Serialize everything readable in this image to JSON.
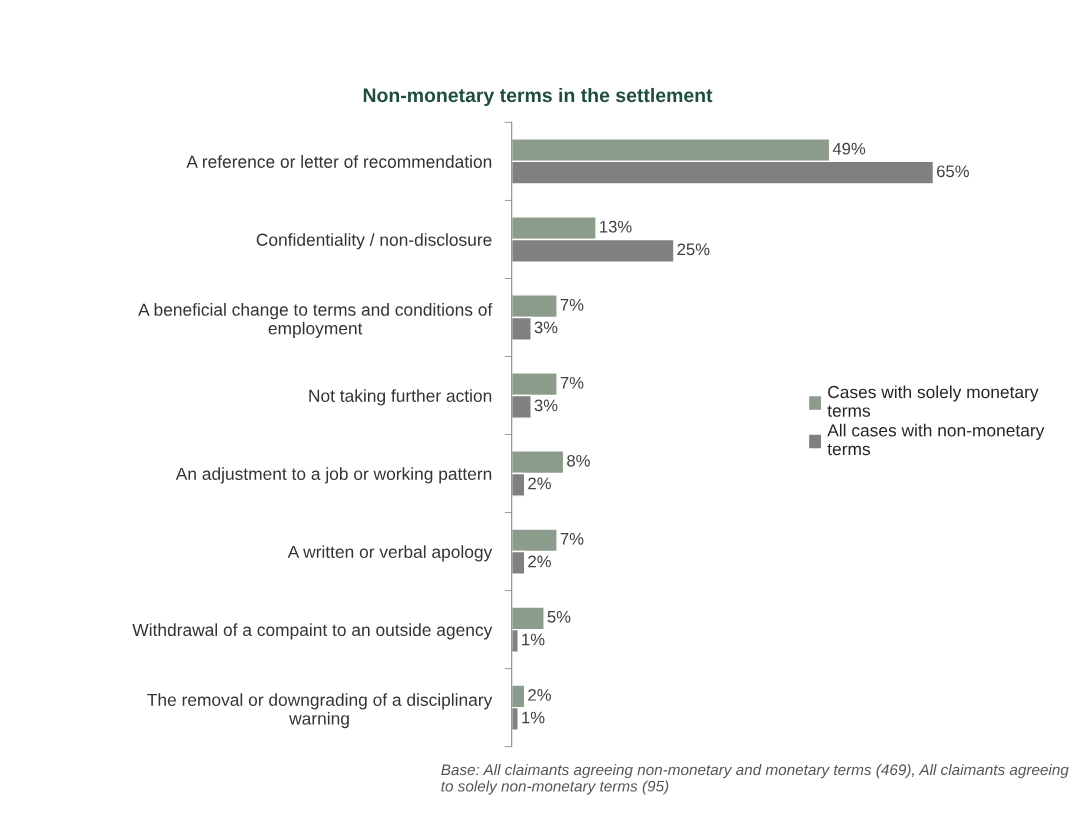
{
  "chart_data": {
    "type": "bar",
    "orientation": "horizontal",
    "title": "Non-monetary terms in the settlement",
    "categories": [
      "A reference or letter of recommendation",
      "Confidentiality / non-disclosure",
      "A beneficial change to terms and conditions of\nemployment",
      "Not taking further action",
      "An adjustment to a job or working pattern",
      "A written or verbal apology",
      "Withdrawal of a compaint to an outside agency",
      "The removal or downgrading of a disciplinary\nwarning"
    ],
    "series": [
      {
        "name": "Cases with solely monetary\nterms",
        "color": "#8c9c8c",
        "values": [
          49,
          13,
          7,
          7,
          8,
          7,
          5,
          2
        ],
        "value_labels": [
          "49%",
          "13%",
          "7%",
          "7%",
          "8%",
          "7%",
          "5%",
          "2%"
        ]
      },
      {
        "name": "All cases with non-monetary\nterms",
        "color": "#808080",
        "values": [
          65,
          25,
          3,
          3,
          2,
          2,
          1,
          1
        ],
        "value_labels": [
          "65%",
          "25%",
          "3%",
          "3%",
          "2%",
          "2%",
          "1%",
          "1%"
        ]
      }
    ],
    "legend": "center right",
    "grid": false,
    "tick_labels": "y",
    "annotations": [
      "Base: All claimants agreeing non-monetary and monetary terms (469), All claimants agreeing to solely non-monetary terms (95)"
    ]
  }
}
